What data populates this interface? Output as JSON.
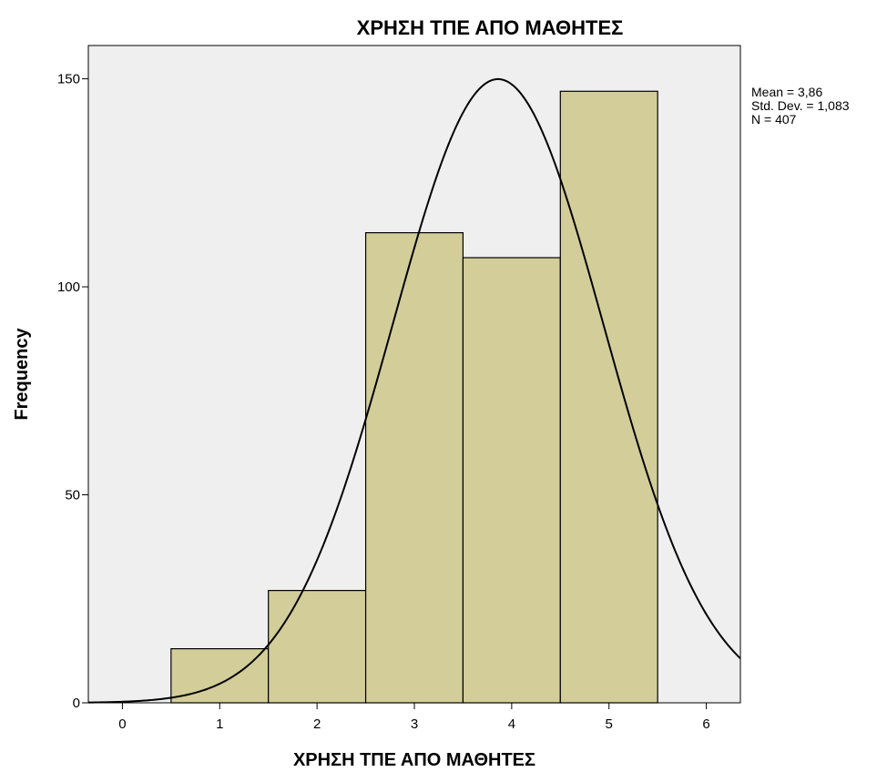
{
  "chart_data": {
    "type": "histogram",
    "title": "ΧΡΗΣΗ ΤΠΕ ΑΠΟ ΜΑΘΗΤΕΣ",
    "xlabel": "ΧΡΗΣΗ ΤΠΕ ΑΠΟ ΜΑΘΗΤΕΣ",
    "ylabel": "Frequency",
    "xlim": [
      -0.35,
      6.35
    ],
    "ylim": [
      0,
      158
    ],
    "x_ticks": [
      0,
      1,
      2,
      3,
      4,
      5,
      6
    ],
    "x_tick_labels": [
      "0",
      "1",
      "2",
      "3",
      "4",
      "5",
      "6"
    ],
    "y_ticks": [
      0,
      50,
      100,
      150
    ],
    "y_tick_labels": [
      "0",
      "50",
      "100",
      "150"
    ],
    "bins": [
      {
        "center": 1,
        "frequency": 13
      },
      {
        "center": 2,
        "frequency": 27
      },
      {
        "center": 3,
        "frequency": 113
      },
      {
        "center": 4,
        "frequency": 107
      },
      {
        "center": 5,
        "frequency": 147
      }
    ],
    "normal_curve": {
      "mean": 3.86,
      "std_dev": 1.083,
      "n": 407
    },
    "stats_labels": [
      "Mean = 3,86",
      "Std. Dev. = 1,083",
      "N = 407"
    ],
    "grid": false,
    "colors": {
      "bar_fill": "#d3cd9a",
      "bar_stroke": "#000000",
      "plot_background": "#efefef",
      "curve": "#000000"
    }
  }
}
